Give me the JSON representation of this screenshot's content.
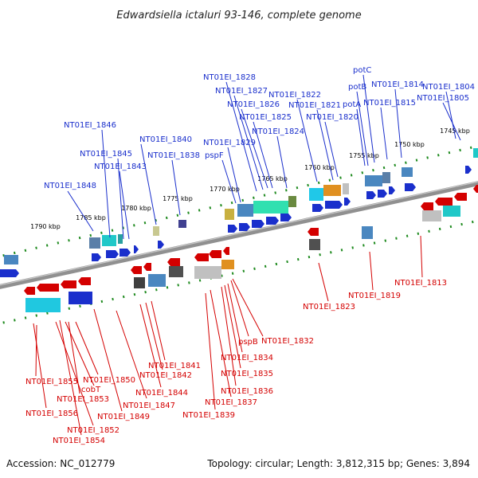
{
  "header": {
    "title": "Edwardsiella ictaluri 93-146, complete genome"
  },
  "footer": {
    "accession": "Accession: NC_012779",
    "summary": "Topology: circular; Length: 3,812,315 bp; Genes: 3,894"
  },
  "scale_labels": [
    "1790 kbp",
    "1785 kbp",
    "1780 kbp",
    "1775 kbp",
    "1770 kbp",
    "1765 kbp",
    "1760 kbp",
    "1755 kbp",
    "1750 kbp",
    "1745 kbp"
  ],
  "upper_labels": [
    "NT01EI_1848",
    "NT01EI_1846",
    "NT01EI_1845",
    "NT01EI_1843",
    "NT01EI_1840",
    "NT01EI_1838",
    "pspF",
    "NT01EI_1829",
    "NT01EI_1828",
    "NT01EI_1827",
    "NT01EI_1826",
    "NT01EI_1825",
    "NT01EI_1824",
    "NT01EI_1822",
    "NT01EI_1821",
    "NT01EI_1820",
    "potC",
    "potB",
    "potA",
    "NT01EI_1815",
    "NT01EI_1814",
    "NT01EI_1804",
    "NT01EI_1805"
  ],
  "lower_labels": [
    "NT01EI_1855",
    "cobT",
    "NT01EI_1853",
    "NT01EI_1850",
    "NT01EI_1856",
    "NT01EI_1852",
    "NT01EI_1854",
    "NT01EI_1847",
    "NT01EI_1849",
    "NT01EI_1844",
    "NT01EI_1842",
    "NT01EI_1841",
    "NT01EI_1839",
    "NT01EI_1837",
    "NT01EI_1836",
    "NT01EI_1835",
    "NT01EI_1834",
    "pspB",
    "NT01EI_1832",
    "NT01EI_1823",
    "NT01EI_1819",
    "NT01EI_1813"
  ],
  "colors": {
    "forward": "#1a2fcc",
    "reverse": "#d40000",
    "backbone": "#808080",
    "ticks": "#1e8a1e"
  }
}
